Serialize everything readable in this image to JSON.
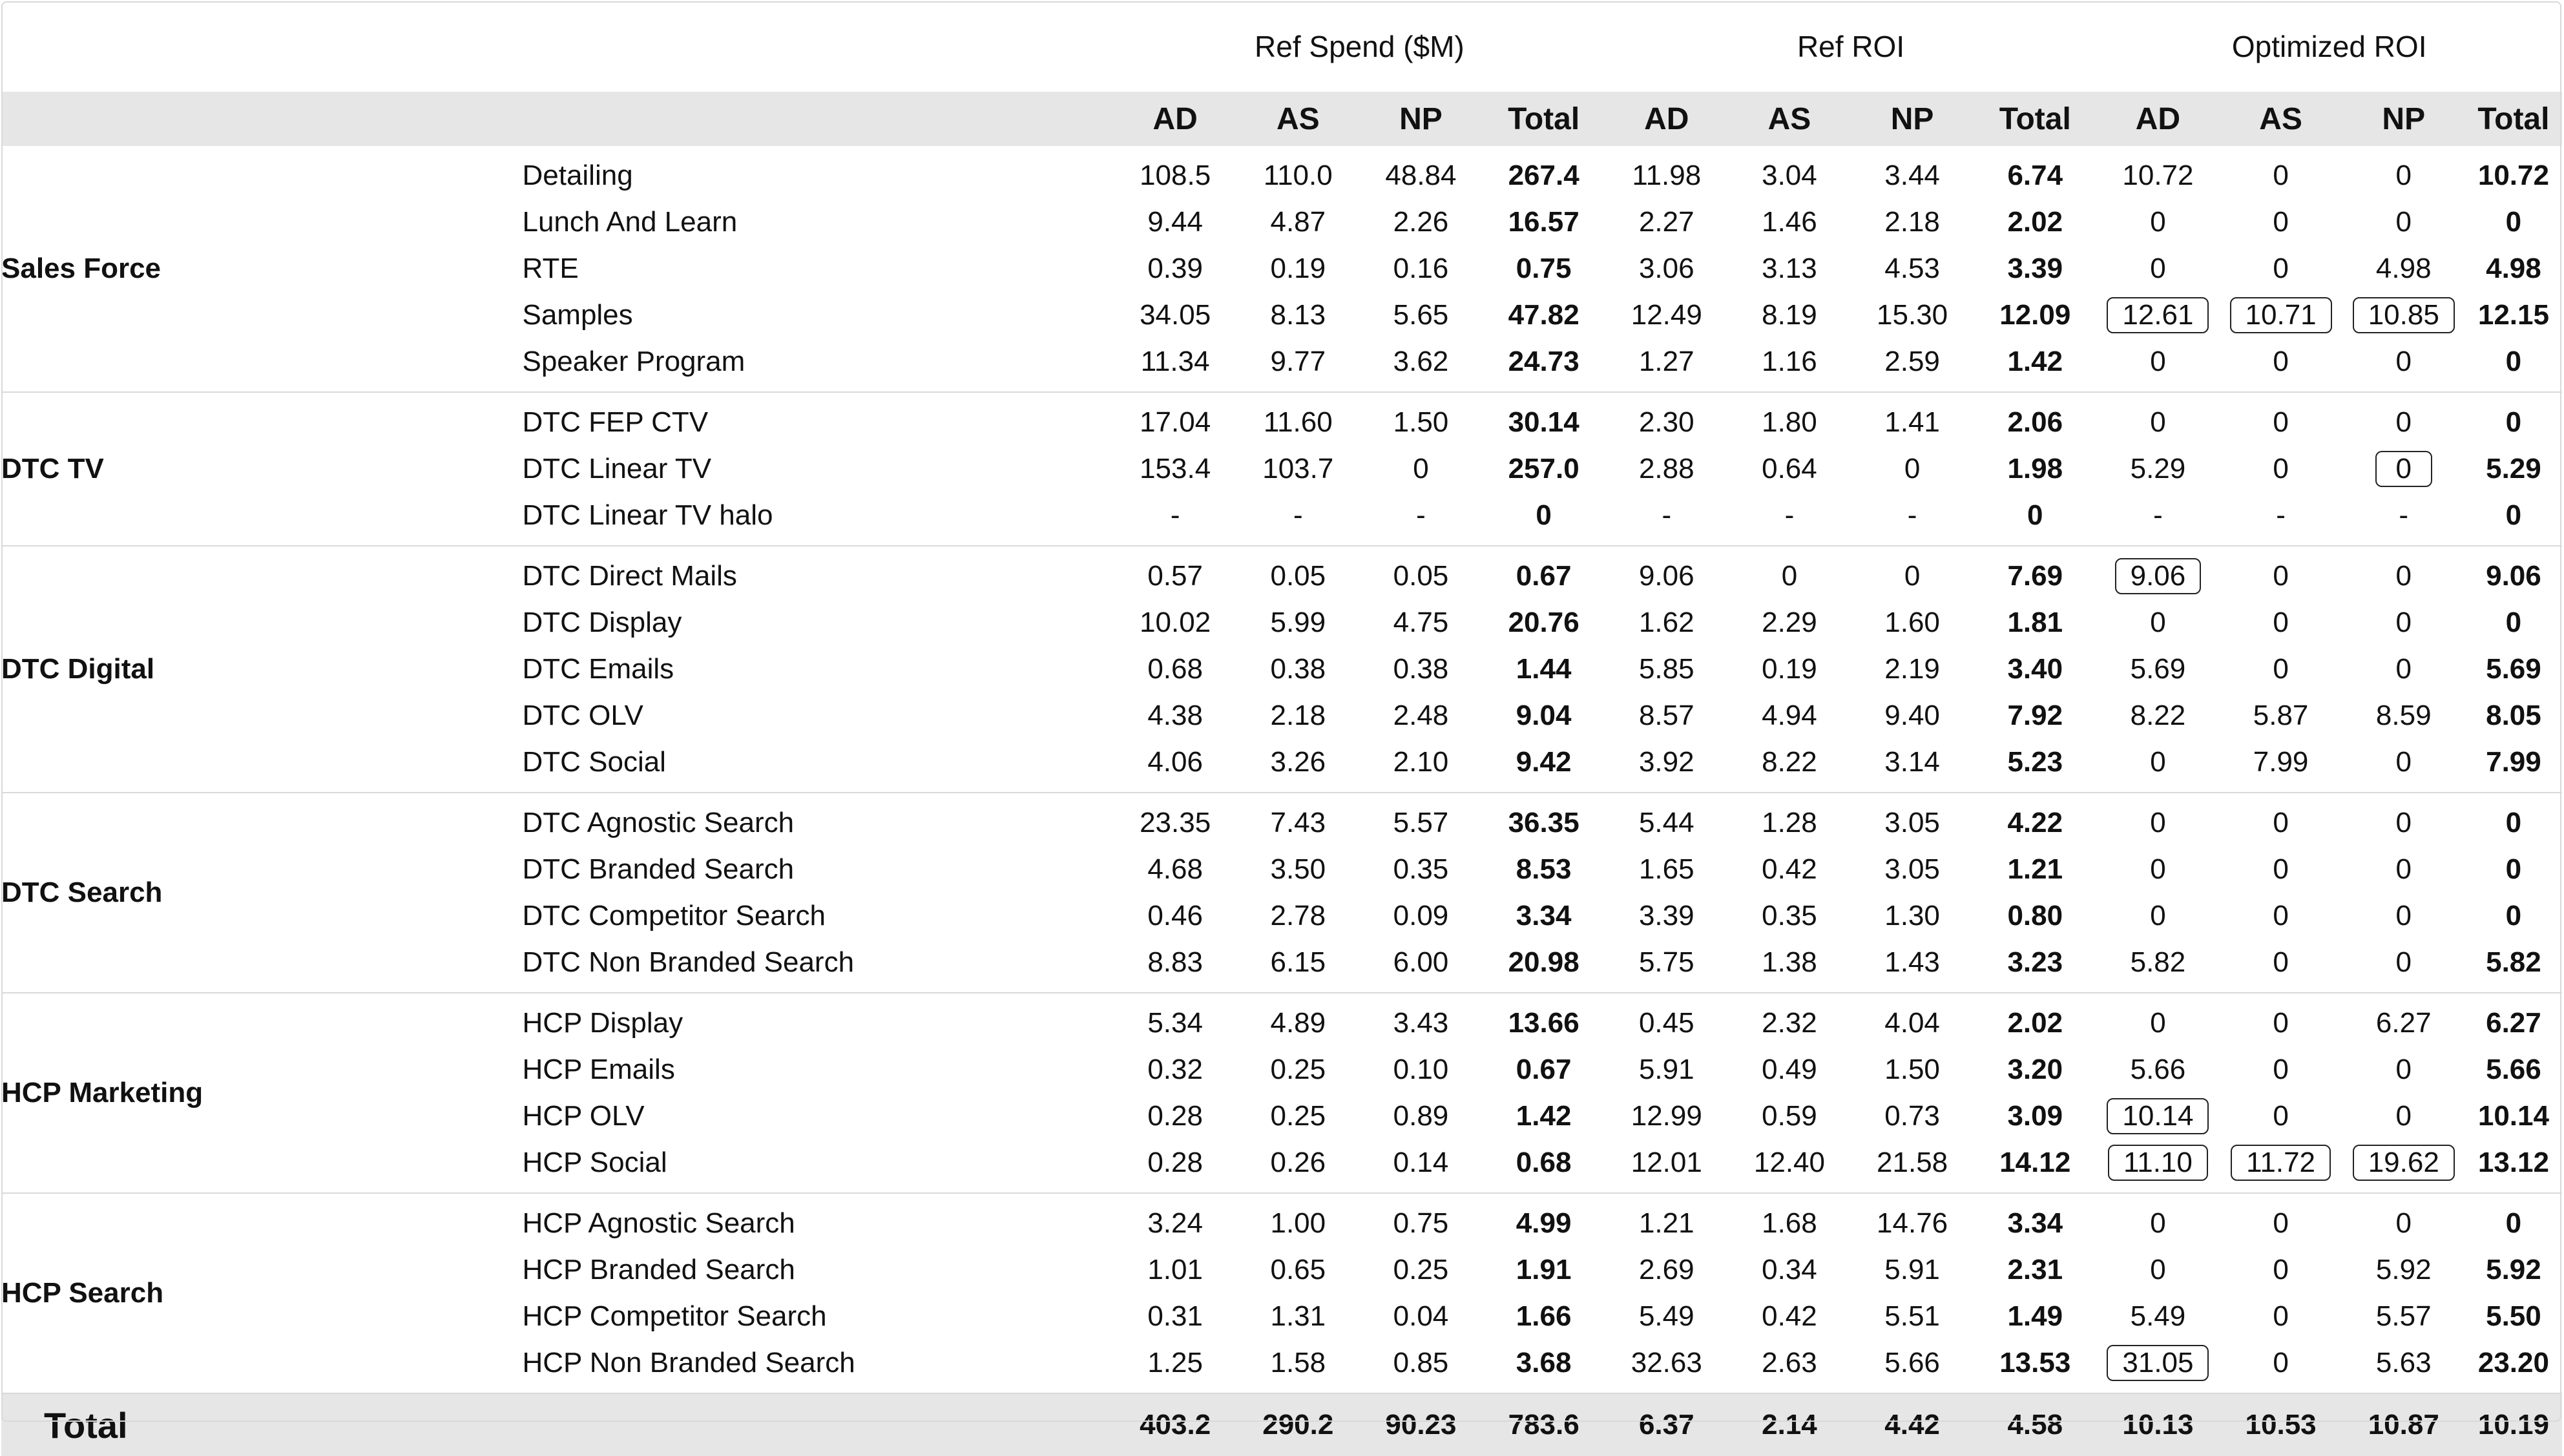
{
  "header": {
    "group_titles": [
      "Ref Spend ($M)",
      "Ref ROI",
      "Optimized ROI"
    ],
    "sub_columns": [
      "AD",
      "AS",
      "NP",
      "Total"
    ]
  },
  "sections": [
    {
      "name": "Sales Force",
      "rows": [
        {
          "channel": "Detailing",
          "spend": [
            "108.5",
            "110.0",
            "48.84",
            "267.4"
          ],
          "ref_roi": [
            "11.98",
            "3.04",
            "3.44",
            "6.74"
          ],
          "opt_roi": [
            "10.72",
            "0",
            "0",
            "10.72"
          ],
          "highlight": [
            false,
            false,
            false
          ]
        },
        {
          "channel": "Lunch And Learn",
          "spend": [
            "9.44",
            "4.87",
            "2.26",
            "16.57"
          ],
          "ref_roi": [
            "2.27",
            "1.46",
            "2.18",
            "2.02"
          ],
          "opt_roi": [
            "0",
            "0",
            "0",
            "0"
          ],
          "highlight": [
            false,
            false,
            false
          ]
        },
        {
          "channel": "RTE",
          "spend": [
            "0.39",
            "0.19",
            "0.16",
            "0.75"
          ],
          "ref_roi": [
            "3.06",
            "3.13",
            "4.53",
            "3.39"
          ],
          "opt_roi": [
            "0",
            "0",
            "4.98",
            "4.98"
          ],
          "highlight": [
            false,
            false,
            false
          ]
        },
        {
          "channel": "Samples",
          "spend": [
            "34.05",
            "8.13",
            "5.65",
            "47.82"
          ],
          "ref_roi": [
            "12.49",
            "8.19",
            "15.30",
            "12.09"
          ],
          "opt_roi": [
            "12.61",
            "10.71",
            "10.85",
            "12.15"
          ],
          "highlight": [
            true,
            true,
            true
          ]
        },
        {
          "channel": "Speaker Program",
          "spend": [
            "11.34",
            "9.77",
            "3.62",
            "24.73"
          ],
          "ref_roi": [
            "1.27",
            "1.16",
            "2.59",
            "1.42"
          ],
          "opt_roi": [
            "0",
            "0",
            "0",
            "0"
          ],
          "highlight": [
            false,
            false,
            false
          ]
        }
      ]
    },
    {
      "name": "DTC TV",
      "rows": [
        {
          "channel": "DTC FEP CTV",
          "spend": [
            "17.04",
            "11.60",
            "1.50",
            "30.14"
          ],
          "ref_roi": [
            "2.30",
            "1.80",
            "1.41",
            "2.06"
          ],
          "opt_roi": [
            "0",
            "0",
            "0",
            "0"
          ],
          "highlight": [
            false,
            false,
            false
          ]
        },
        {
          "channel": "DTC Linear TV",
          "spend": [
            "153.4",
            "103.7",
            "0",
            "257.0"
          ],
          "ref_roi": [
            "2.88",
            "0.64",
            "0",
            "1.98"
          ],
          "opt_roi": [
            "5.29",
            "0",
            "0",
            "5.29"
          ],
          "highlight": [
            false,
            false,
            true
          ]
        },
        {
          "channel": "DTC Linear TV halo",
          "spend": [
            "-",
            "-",
            "-",
            "0"
          ],
          "ref_roi": [
            "-",
            "-",
            "-",
            "0"
          ],
          "opt_roi": [
            "-",
            "-",
            "-",
            "0"
          ],
          "highlight": [
            false,
            false,
            false
          ]
        }
      ]
    },
    {
      "name": "DTC Digital",
      "rows": [
        {
          "channel": "DTC Direct Mails",
          "spend": [
            "0.57",
            "0.05",
            "0.05",
            "0.67"
          ],
          "ref_roi": [
            "9.06",
            "0",
            "0",
            "7.69"
          ],
          "opt_roi": [
            "9.06",
            "0",
            "0",
            "9.06"
          ],
          "highlight": [
            true,
            false,
            false
          ]
        },
        {
          "channel": "DTC Display",
          "spend": [
            "10.02",
            "5.99",
            "4.75",
            "20.76"
          ],
          "ref_roi": [
            "1.62",
            "2.29",
            "1.60",
            "1.81"
          ],
          "opt_roi": [
            "0",
            "0",
            "0",
            "0"
          ],
          "highlight": [
            false,
            false,
            false
          ]
        },
        {
          "channel": "DTC Emails",
          "spend": [
            "0.68",
            "0.38",
            "0.38",
            "1.44"
          ],
          "ref_roi": [
            "5.85",
            "0.19",
            "2.19",
            "3.40"
          ],
          "opt_roi": [
            "5.69",
            "0",
            "0",
            "5.69"
          ],
          "highlight": [
            false,
            false,
            false
          ]
        },
        {
          "channel": "DTC OLV",
          "spend": [
            "4.38",
            "2.18",
            "2.48",
            "9.04"
          ],
          "ref_roi": [
            "8.57",
            "4.94",
            "9.40",
            "7.92"
          ],
          "opt_roi": [
            "8.22",
            "5.87",
            "8.59",
            "8.05"
          ],
          "highlight": [
            false,
            false,
            false
          ]
        },
        {
          "channel": "DTC Social",
          "spend": [
            "4.06",
            "3.26",
            "2.10",
            "9.42"
          ],
          "ref_roi": [
            "3.92",
            "8.22",
            "3.14",
            "5.23"
          ],
          "opt_roi": [
            "0",
            "7.99",
            "0",
            "7.99"
          ],
          "highlight": [
            false,
            false,
            false
          ]
        }
      ]
    },
    {
      "name": "DTC Search",
      "rows": [
        {
          "channel": "DTC Agnostic Search",
          "spend": [
            "23.35",
            "7.43",
            "5.57",
            "36.35"
          ],
          "ref_roi": [
            "5.44",
            "1.28",
            "3.05",
            "4.22"
          ],
          "opt_roi": [
            "0",
            "0",
            "0",
            "0"
          ],
          "highlight": [
            false,
            false,
            false
          ]
        },
        {
          "channel": "DTC Branded Search",
          "spend": [
            "4.68",
            "3.50",
            "0.35",
            "8.53"
          ],
          "ref_roi": [
            "1.65",
            "0.42",
            "3.05",
            "1.21"
          ],
          "opt_roi": [
            "0",
            "0",
            "0",
            "0"
          ],
          "highlight": [
            false,
            false,
            false
          ]
        },
        {
          "channel": "DTC Competitor Search",
          "spend": [
            "0.46",
            "2.78",
            "0.09",
            "3.34"
          ],
          "ref_roi": [
            "3.39",
            "0.35",
            "1.30",
            "0.80"
          ],
          "opt_roi": [
            "0",
            "0",
            "0",
            "0"
          ],
          "highlight": [
            false,
            false,
            false
          ]
        },
        {
          "channel": "DTC Non Branded Search",
          "spend": [
            "8.83",
            "6.15",
            "6.00",
            "20.98"
          ],
          "ref_roi": [
            "5.75",
            "1.38",
            "1.43",
            "3.23"
          ],
          "opt_roi": [
            "5.82",
            "0",
            "0",
            "5.82"
          ],
          "highlight": [
            false,
            false,
            false
          ]
        }
      ]
    },
    {
      "name": "HCP Marketing",
      "rows": [
        {
          "channel": "HCP Display",
          "spend": [
            "5.34",
            "4.89",
            "3.43",
            "13.66"
          ],
          "ref_roi": [
            "0.45",
            "2.32",
            "4.04",
            "2.02"
          ],
          "opt_roi": [
            "0",
            "0",
            "6.27",
            "6.27"
          ],
          "highlight": [
            false,
            false,
            false
          ]
        },
        {
          "channel": "HCP Emails",
          "spend": [
            "0.32",
            "0.25",
            "0.10",
            "0.67"
          ],
          "ref_roi": [
            "5.91",
            "0.49",
            "1.50",
            "3.20"
          ],
          "opt_roi": [
            "5.66",
            "0",
            "0",
            "5.66"
          ],
          "highlight": [
            false,
            false,
            false
          ]
        },
        {
          "channel": "HCP OLV",
          "spend": [
            "0.28",
            "0.25",
            "0.89",
            "1.42"
          ],
          "ref_roi": [
            "12.99",
            "0.59",
            "0.73",
            "3.09"
          ],
          "opt_roi": [
            "10.14",
            "0",
            "0",
            "10.14"
          ],
          "highlight": [
            true,
            false,
            false
          ]
        },
        {
          "channel": "HCP Social",
          "spend": [
            "0.28",
            "0.26",
            "0.14",
            "0.68"
          ],
          "ref_roi": [
            "12.01",
            "12.40",
            "21.58",
            "14.12"
          ],
          "opt_roi": [
            "11.10",
            "11.72",
            "19.62",
            "13.12"
          ],
          "highlight": [
            true,
            true,
            true
          ]
        }
      ]
    },
    {
      "name": "HCP Search",
      "rows": [
        {
          "channel": "HCP Agnostic Search",
          "spend": [
            "3.24",
            "1.00",
            "0.75",
            "4.99"
          ],
          "ref_roi": [
            "1.21",
            "1.68",
            "14.76",
            "3.34"
          ],
          "opt_roi": [
            "0",
            "0",
            "0",
            "0"
          ],
          "highlight": [
            false,
            false,
            false
          ]
        },
        {
          "channel": "HCP Branded Search",
          "spend": [
            "1.01",
            "0.65",
            "0.25",
            "1.91"
          ],
          "ref_roi": [
            "2.69",
            "0.34",
            "5.91",
            "2.31"
          ],
          "opt_roi": [
            "0",
            "0",
            "5.92",
            "5.92"
          ],
          "highlight": [
            false,
            false,
            false
          ]
        },
        {
          "channel": "HCP Competitor Search",
          "spend": [
            "0.31",
            "1.31",
            "0.04",
            "1.66"
          ],
          "ref_roi": [
            "5.49",
            "0.42",
            "5.51",
            "1.49"
          ],
          "opt_roi": [
            "5.49",
            "0",
            "5.57",
            "5.50"
          ],
          "highlight": [
            false,
            false,
            false
          ]
        },
        {
          "channel": "HCP Non Branded Search",
          "spend": [
            "1.25",
            "1.58",
            "0.85",
            "3.68"
          ],
          "ref_roi": [
            "32.63",
            "2.63",
            "5.66",
            "13.53"
          ],
          "opt_roi": [
            "31.05",
            "0",
            "5.63",
            "23.20"
          ],
          "highlight": [
            true,
            false,
            false
          ]
        }
      ]
    }
  ],
  "total": {
    "label": "Total",
    "spend": [
      "403.2",
      "290.2",
      "90.23",
      "783.6"
    ],
    "ref_roi": [
      "6.37",
      "2.14",
      "4.42",
      "4.58"
    ],
    "opt_roi": [
      "10.13",
      "10.53",
      "10.87",
      "10.19"
    ]
  }
}
